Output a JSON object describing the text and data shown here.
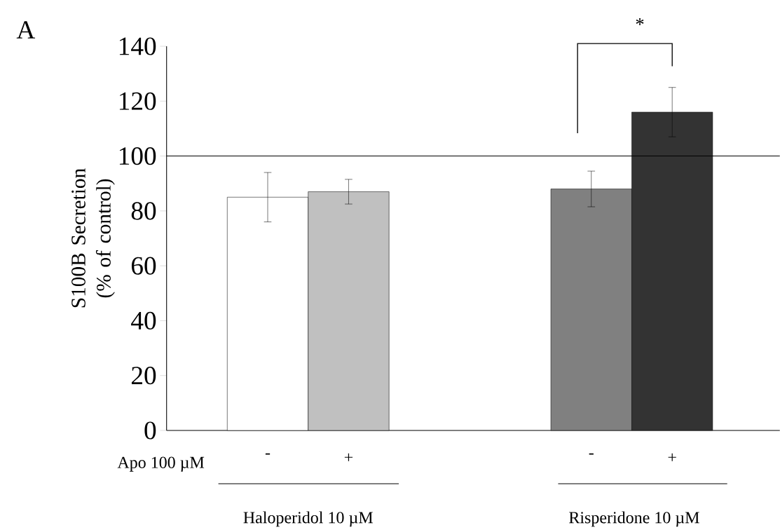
{
  "chart_data": {
    "type": "bar",
    "ylabel": "S100B Secretion (% of control)",
    "categories": [
      "-",
      "+",
      null,
      null,
      "-",
      "+"
    ],
    "values": [
      85,
      87,
      null,
      null,
      88,
      116
    ],
    "errors": [
      9,
      4.5,
      null,
      null,
      6.5,
      9
    ],
    "colors": [
      "#ffffff",
      "#c0c0c0",
      "#ffffff",
      "#ffffff",
      "#808080",
      "#333333"
    ],
    "ylim": [
      0,
      140
    ],
    "yticks": [
      0,
      20,
      40,
      60,
      80,
      100,
      120,
      140
    ],
    "ref_lines": [
      {
        "axis": "y",
        "value": 100,
        "color": "#000000"
      }
    ],
    "grid": false,
    "annotations": [
      "A",
      "*",
      "Apo  100 µM",
      "Haloperidol 10 µM",
      "Risperidone 10 µM"
    ]
  }
}
